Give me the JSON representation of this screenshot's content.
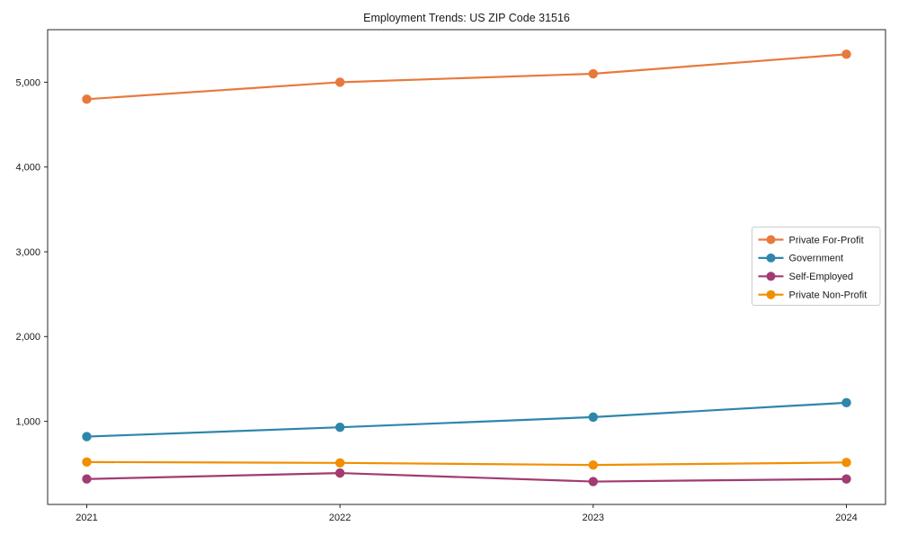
{
  "title": "Employment Trends: US ZIP Code 31516",
  "chart_data": {
    "type": "line",
    "title": "Employment Trends: US ZIP Code 31516",
    "xlabel": "",
    "ylabel": "",
    "categories": [
      "2021",
      "2022",
      "2023",
      "2024"
    ],
    "x": [
      2021,
      2022,
      2023,
      2024
    ],
    "series": [
      {
        "name": "Private For-Profit",
        "color": "#E8793D",
        "values": [
          4800,
          5000,
          5100,
          5330
        ]
      },
      {
        "name": "Government",
        "color": "#2E86AB",
        "values": [
          820,
          930,
          1050,
          1220
        ]
      },
      {
        "name": "Self-Employed",
        "color": "#A23B72",
        "values": [
          320,
          390,
          290,
          320
        ]
      },
      {
        "name": "Private Non-Profit",
        "color": "#F18F01",
        "values": [
          520,
          510,
          485,
          515
        ]
      }
    ],
    "ylim": [
      20,
      5620
    ],
    "yticks": [
      1000,
      2000,
      3000,
      4000,
      5000
    ],
    "ytick_labels": [
      "1,000",
      "2,000",
      "3,000",
      "4,000",
      "5,000"
    ],
    "grid": false,
    "legend_position": "center-right",
    "axis_color": "#262626",
    "legend_border_color": "#cccccc"
  }
}
